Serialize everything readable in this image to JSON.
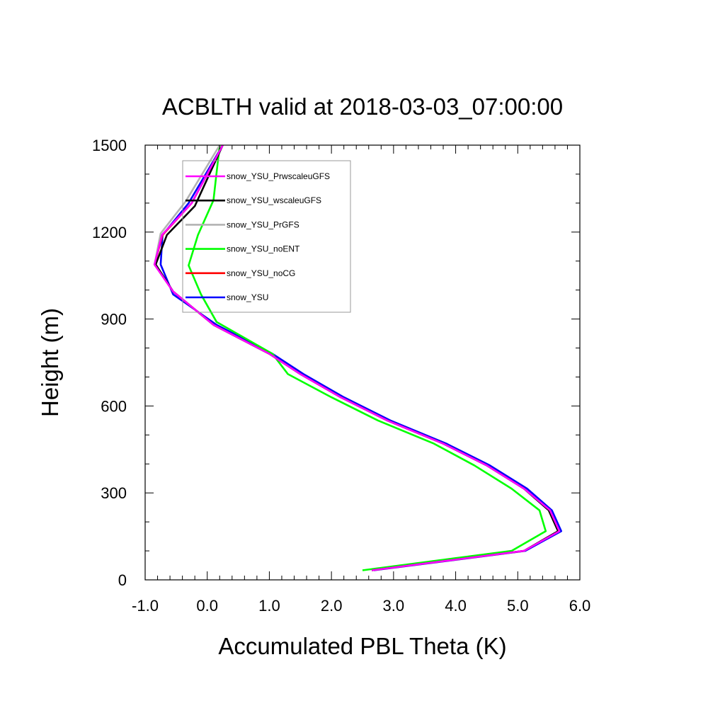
{
  "chart_data": {
    "type": "line",
    "title": "ACBLTH valid at 2018-03-03_07:00:00",
    "xlabel": "Accumulated PBL Theta (K)",
    "ylabel": "Height (m)",
    "xlim": [
      -1.0,
      6.0
    ],
    "ylim": [
      0,
      1500
    ],
    "x_ticks": [
      -1.0,
      0.0,
      1.0,
      2.0,
      3.0,
      4.0,
      5.0,
      6.0
    ],
    "x_tick_labels": [
      "-1.0",
      "0.0",
      "1.0",
      "2.0",
      "3.0",
      "4.0",
      "5.0",
      "6.0"
    ],
    "y_ticks": [
      0,
      300,
      600,
      900,
      1200,
      1500
    ],
    "y_tick_labels": [
      "0",
      "300",
      "600",
      "900",
      "1200",
      "1500"
    ],
    "grid": false,
    "legend_position": "top-left",
    "series": [
      {
        "name": "snow_YSU_PrwscaleuGFS",
        "color": "#ff00ff",
        "points": [
          [
            2.65,
            33
          ],
          [
            5.1,
            100
          ],
          [
            5.67,
            168
          ],
          [
            5.52,
            240
          ],
          [
            5.1,
            315
          ],
          [
            4.5,
            395
          ],
          [
            3.8,
            470
          ],
          [
            2.9,
            550
          ],
          [
            2.15,
            630
          ],
          [
            1.5,
            710
          ],
          [
            1.0,
            780
          ],
          [
            0.1,
            880
          ],
          [
            -0.55,
            995
          ],
          [
            -0.85,
            1088
          ],
          [
            -0.73,
            1190
          ],
          [
            -0.25,
            1300
          ],
          [
            0.25,
            1500
          ]
        ]
      },
      {
        "name": "snow_YSU_wscaleuGFS",
        "color": "#000000",
        "points": [
          [
            2.65,
            33
          ],
          [
            5.1,
            100
          ],
          [
            5.65,
            168
          ],
          [
            5.5,
            240
          ],
          [
            5.1,
            315
          ],
          [
            4.5,
            395
          ],
          [
            3.8,
            470
          ],
          [
            2.9,
            550
          ],
          [
            2.15,
            630
          ],
          [
            1.5,
            710
          ],
          [
            1.0,
            780
          ],
          [
            0.1,
            880
          ],
          [
            -0.55,
            995
          ],
          [
            -0.83,
            1088
          ],
          [
            -0.65,
            1190
          ],
          [
            -0.2,
            1290
          ],
          [
            0.25,
            1500
          ]
        ]
      },
      {
        "name": "snow_YSU_PrGFS",
        "color": "#b3b3b3",
        "points": [
          [
            2.65,
            33
          ],
          [
            5.1,
            100
          ],
          [
            5.65,
            168
          ],
          [
            5.5,
            240
          ],
          [
            5.1,
            315
          ],
          [
            4.5,
            395
          ],
          [
            3.8,
            470
          ],
          [
            2.9,
            550
          ],
          [
            2.15,
            630
          ],
          [
            1.5,
            710
          ],
          [
            1.0,
            780
          ],
          [
            0.1,
            880
          ],
          [
            -0.55,
            995
          ],
          [
            -0.85,
            1088
          ],
          [
            -0.75,
            1195
          ],
          [
            -0.35,
            1305
          ],
          [
            0.2,
            1500
          ]
        ]
      },
      {
        "name": "snow_YSU_noENT",
        "color": "#00ff00",
        "points": [
          [
            2.5,
            33
          ],
          [
            4.9,
            100
          ],
          [
            5.45,
            168
          ],
          [
            5.35,
            240
          ],
          [
            4.9,
            315
          ],
          [
            4.3,
            395
          ],
          [
            3.65,
            470
          ],
          [
            2.75,
            550
          ],
          [
            2.0,
            630
          ],
          [
            1.3,
            710
          ],
          [
            1.05,
            780
          ],
          [
            0.15,
            890
          ],
          [
            -0.1,
            985
          ],
          [
            -0.3,
            1085
          ],
          [
            -0.15,
            1190
          ],
          [
            0.1,
            1310
          ],
          [
            0.2,
            1500
          ]
        ]
      },
      {
        "name": "snow_YSU_noCG",
        "color": "#ff0000",
        "points": [
          [
            2.65,
            33
          ],
          [
            5.1,
            100
          ],
          [
            5.65,
            168
          ],
          [
            5.5,
            240
          ],
          [
            5.1,
            315
          ],
          [
            4.5,
            395
          ],
          [
            3.8,
            470
          ],
          [
            2.9,
            550
          ],
          [
            2.15,
            630
          ],
          [
            1.5,
            710
          ],
          [
            1.0,
            780
          ],
          [
            0.1,
            880
          ],
          [
            -0.55,
            995
          ],
          [
            -0.85,
            1088
          ],
          [
            -0.72,
            1190
          ],
          [
            -0.25,
            1300
          ],
          [
            0.25,
            1500
          ]
        ]
      },
      {
        "name": "snow_YSU",
        "color": "#0000ff",
        "points": [
          [
            2.68,
            33
          ],
          [
            5.12,
            100
          ],
          [
            5.7,
            168
          ],
          [
            5.55,
            240
          ],
          [
            5.15,
            315
          ],
          [
            4.55,
            395
          ],
          [
            3.85,
            470
          ],
          [
            2.95,
            550
          ],
          [
            2.2,
            630
          ],
          [
            1.55,
            710
          ],
          [
            1.05,
            780
          ],
          [
            0.15,
            880
          ],
          [
            -0.55,
            985
          ],
          [
            -0.75,
            1088
          ],
          [
            -0.72,
            1190
          ],
          [
            -0.3,
            1300
          ],
          [
            0.25,
            1500
          ]
        ]
      }
    ]
  }
}
